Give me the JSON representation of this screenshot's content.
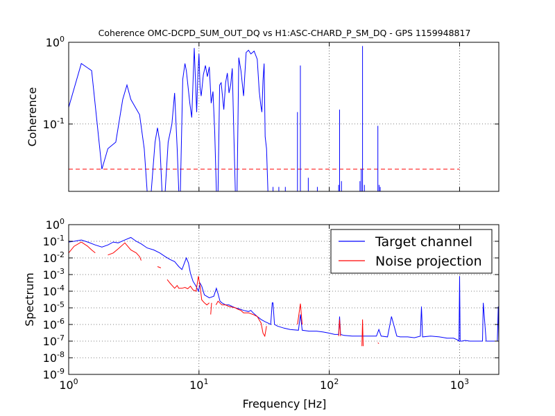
{
  "figure": {
    "background": "#ffffff",
    "target_color": "#0000ff",
    "noise_color": "#ff0000",
    "threshold_color": "#ff0000"
  },
  "chart_data": [
    {
      "type": "line",
      "title": "Coherence OMC-DCPD_SUM_OUT_DQ vs H1:ASC-CHARD_P_SM_DQ - GPS 1159948817",
      "ylabel": "Coherence",
      "xlabel": "",
      "xscale": "log",
      "yscale": "log",
      "xlim": [
        1,
        2000
      ],
      "ylim": [
        0.015,
        1
      ],
      "grid": true,
      "xticks": [
        {
          "v": 1,
          "label": ""
        },
        {
          "v": 10,
          "label": ""
        },
        {
          "v": 100,
          "label": ""
        },
        {
          "v": 1000,
          "label": ""
        }
      ],
      "yticks": [
        {
          "v": 0.1,
          "b": "10",
          "e": "-1"
        },
        {
          "v": 1,
          "b": "10",
          "e": "0"
        }
      ],
      "threshold": {
        "value": 0.028,
        "x_range": [
          1,
          1000
        ],
        "style": "dashed"
      },
      "series": [
        {
          "color": "#0000ff",
          "x": [
            1.0,
            1.25,
            1.5,
            1.8,
            2.0,
            2.3,
            2.6,
            2.8,
            3.0,
            3.5,
            3.8,
            4.0,
            4.3,
            4.6,
            4.8,
            5.0,
            5.2,
            5.5,
            5.8,
            6.2,
            6.5,
            6.8,
            7.0,
            7.2,
            7.5,
            7.8,
            8.0,
            8.5,
            8.8,
            9.2,
            9.6,
            9.8,
            10.0,
            10.2,
            10.4,
            10.8,
            11.2,
            11.6,
            12.0,
            12.4,
            12.8,
            13.2,
            13.6,
            14.0,
            14.4,
            14.8,
            15.5,
            16.0,
            16.5,
            17.0,
            17.5,
            18.0,
            18.5,
            19.0,
            19.6,
            20.2,
            21.0,
            22.0,
            23.0,
            24.0,
            25.0,
            26.5,
            28.0,
            29.0,
            29.8,
            30.4,
            31.0,
            31.6,
            32.2,
            33.0,
            33.8
          ],
          "y": [
            0.16,
            0.55,
            0.45,
            0.028,
            0.05,
            0.06,
            0.2,
            0.3,
            0.2,
            0.13,
            0.05,
            0.015,
            0.015,
            0.06,
            0.09,
            0.06,
            0.015,
            0.015,
            0.06,
            0.1,
            0.24,
            0.05,
            0.015,
            0.015,
            0.35,
            0.55,
            0.45,
            0.18,
            0.12,
            0.85,
            0.14,
            0.4,
            0.72,
            0.28,
            0.22,
            0.4,
            0.52,
            0.38,
            0.5,
            0.18,
            0.25,
            0.08,
            0.015,
            0.015,
            0.3,
            0.32,
            0.15,
            0.32,
            0.42,
            0.24,
            0.3,
            0.48,
            0.08,
            0.015,
            0.015,
            0.65,
            0.45,
            0.22,
            0.75,
            0.8,
            0.72,
            0.78,
            0.62,
            0.25,
            0.17,
            0.14,
            0.34,
            0.55,
            0.07,
            0.05,
            0.015
          ]
        }
      ],
      "spikes": [
        {
          "x": 37,
          "y": 0.017
        },
        {
          "x": 41,
          "y": 0.017
        },
        {
          "x": 46,
          "y": 0.017
        },
        {
          "x": 57,
          "y": 0.14
        },
        {
          "x": 60,
          "y": 0.52
        },
        {
          "x": 69,
          "y": 0.022
        },
        {
          "x": 81,
          "y": 0.017
        },
        {
          "x": 118,
          "y": 0.018
        },
        {
          "x": 120,
          "y": 0.15
        },
        {
          "x": 124,
          "y": 0.02
        },
        {
          "x": 172,
          "y": 0.02
        },
        {
          "x": 176,
          "y": 0.028
        },
        {
          "x": 180,
          "y": 0.9
        },
        {
          "x": 186,
          "y": 0.018
        },
        {
          "x": 236,
          "y": 0.095
        },
        {
          "x": 241,
          "y": 0.018
        },
        {
          "x": 246,
          "y": 0.017
        }
      ]
    },
    {
      "type": "line",
      "title": "",
      "xlabel": "Frequency [Hz]",
      "ylabel": "Spectrum",
      "xscale": "log",
      "yscale": "log",
      "xlim": [
        1,
        2000
      ],
      "ylim": [
        1e-09,
        1
      ],
      "grid": true,
      "legend": "top-right",
      "xticks": [
        {
          "v": 1,
          "b": "10",
          "e": "0"
        },
        {
          "v": 10,
          "b": "10",
          "e": "1"
        },
        {
          "v": 100,
          "b": "10",
          "e": "2"
        },
        {
          "v": 1000,
          "b": "10",
          "e": "3"
        }
      ],
      "yticks": [
        {
          "v": 1e-09,
          "b": "10",
          "e": "-9"
        },
        {
          "v": 1e-08,
          "b": "10",
          "e": "-8"
        },
        {
          "v": 1e-07,
          "b": "10",
          "e": "-7"
        },
        {
          "v": 1e-06,
          "b": "10",
          "e": "-6"
        },
        {
          "v": 1e-05,
          "b": "10",
          "e": "-5"
        },
        {
          "v": 0.0001,
          "b": "10",
          "e": "-4"
        },
        {
          "v": 0.001,
          "b": "10",
          "e": "-3"
        },
        {
          "v": 0.01,
          "b": "10",
          "e": "-2"
        },
        {
          "v": 0.1,
          "b": "10",
          "e": "-1"
        },
        {
          "v": 1,
          "b": "10",
          "e": "0"
        }
      ],
      "series": [
        {
          "name": "Target channel",
          "color": "#0000ff",
          "x": [
            1.0,
            1.1,
            1.25,
            1.4,
            1.6,
            1.8,
            2.0,
            2.2,
            2.4,
            2.7,
            3.0,
            3.3,
            3.6,
            4.0,
            4.5,
            5.0,
            5.5,
            6.0,
            6.5,
            7.0,
            7.4,
            7.8,
            8.0,
            8.3,
            8.6,
            9.0,
            9.5,
            9.9,
            10.2,
            10.5,
            11.0,
            12.0,
            13.0,
            13.6,
            14.0,
            14.5,
            15.0,
            16.0,
            17.0,
            18.0,
            19.0,
            20.0,
            21.0,
            22.0,
            24.0,
            25.0,
            26.0,
            28.0,
            30.0,
            32.0,
            34.0,
            35.5,
            36.5,
            37.0,
            38.0,
            40.0,
            45.0,
            50.0,
            58.0,
            60.0,
            62.0,
            70.0,
            80.0,
            90.0,
            100.0,
            110.0,
            118.0,
            120.0,
            122.0,
            130.0,
            150.0,
            170.0,
            180.0,
            190.0,
            200.0,
            230.0,
            240.0,
            250.0,
            280.0,
            300.0,
            330.0,
            350.0,
            400.0,
            450.0,
            500.0,
            510.0,
            520.0,
            600.0,
            700.0,
            800.0,
            900.0,
            960.0,
            990.0,
            1000.0,
            1010.0,
            1040.0,
            1100.0,
            1200.0,
            1300.0,
            1400.0,
            1500.0,
            1520.0,
            1600.0,
            1800.0,
            1950.0,
            1980.0,
            2000.0
          ],
          "y": [
            0.09,
            0.1,
            0.12,
            0.09,
            0.06,
            0.045,
            0.06,
            0.09,
            0.08,
            0.12,
            0.17,
            0.1,
            0.07,
            0.04,
            0.03,
            0.02,
            0.012,
            0.008,
            0.006,
            0.003,
            0.002,
            0.006,
            0.01,
            0.005,
            0.0012,
            0.0004,
            0.0002,
            0.0001,
            0.0003,
            0.0002,
            6e-05,
            4e-05,
            5e-05,
            0.00015,
            7e-05,
            2.5e-05,
            2e-05,
            1.5e-05,
            1.5e-05,
            1.2e-05,
            1e-05,
            9e-06,
            8e-06,
            7e-06,
            6e-06,
            7e-06,
            5e-06,
            3e-06,
            2e-06,
            1.5e-06,
            1.2e-06,
            1e-06,
            2e-05,
            2e-05,
            1e-06,
            8e-07,
            6e-07,
            5e-07,
            4.5e-07,
            4e-06,
            4.5e-07,
            4e-07,
            4e-07,
            3.5e-07,
            3e-07,
            2.5e-07,
            2.5e-07,
            3e-06,
            2.5e-07,
            2.2e-07,
            2e-07,
            2e-07,
            2e-07,
            2e-07,
            2e-07,
            2e-07,
            5e-07,
            2e-07,
            1.8e-07,
            3e-06,
            2e-07,
            1.8e-07,
            1.8e-07,
            1.6e-07,
            2e-07,
            1.2e-05,
            1.8e-07,
            2e-07,
            1.8e-07,
            1.5e-07,
            1.5e-07,
            1.2e-07,
            1e-07,
            0.0008,
            1e-07,
            1e-07,
            1.1e-07,
            1e-07,
            1e-07,
            1e-07,
            1e-07,
            2e-05,
            1e-07,
            1e-07,
            1e-07,
            1.2e-05,
            1e-07
          ]
        },
        {
          "name": "Noise projection",
          "color": "#ff0000",
          "segments": [
            {
              "x": [
                1.0,
                1.1,
                1.25,
                1.4,
                1.5,
                1.6
              ],
              "y": [
                0.02,
                0.05,
                0.09,
                0.05,
                0.03,
                0.02
              ]
            },
            {
              "x": [
                2.0,
                2.2,
                2.4,
                2.7,
                3.0,
                3.3,
                3.5,
                3.6
              ],
              "y": [
                0.015,
                0.02,
                0.035,
                0.08,
                0.03,
                0.02,
                0.012,
                0.007
              ]
            },
            {
              "x": [
                4.8,
                5.1
              ],
              "y": [
                0.003,
                0.0025
              ]
            },
            {
              "x": [
                5.7,
                6.0,
                6.5,
                6.8,
                7.0,
                7.4,
                7.8,
                8.2,
                8.6,
                9.0,
                9.5,
                9.9,
                10.2,
                10.5,
                11.0,
                11.5,
                12.0
              ],
              "y": [
                0.0005,
                0.0003,
                0.00015,
                0.00022,
                0.00015,
                0.00015,
                0.00017,
                0.00014,
                0.0002,
                0.00012,
                0.0001,
                0.0008,
                0.0002,
                3e-05,
                2e-05,
                1.5e-05,
                2e-05
              ]
            },
            {
              "x": [
                12.3,
                12.5
              ],
              "y": [
                4e-06,
                2e-05
              ]
            },
            {
              "x": [
                13.5,
                14.0,
                15.0,
                16.0,
                17.0,
                18.0,
                19.0,
                20.0,
                21.0,
                22.0,
                24.0,
                26.0,
                28.0,
                30.0,
                31.0,
                32.0,
                33.0
              ],
              "y": [
                1.5e-05,
                2.5e-05,
                1.5e-05,
                1.5e-05,
                1.2e-05,
                1.1e-05,
                1e-05,
                8e-06,
                7e-06,
                5e-06,
                5e-06,
                4e-06,
                3e-06,
                1.2e-06,
                3e-07,
                2e-07,
                8e-07
              ]
            },
            {
              "x": [
                57,
                60,
                62
              ],
              "y": [
                1e-06,
                1.8e-05,
                1e-06
              ]
            },
            {
              "x": [
                118,
                120,
                122
              ],
              "y": [
                2e-07,
                2e-06,
                2e-07
              ]
            },
            {
              "x": [
                178,
                180,
                182
              ],
              "y": [
                5e-08,
                2e-06,
                5e-08
              ]
            },
            {
              "x": [
                236,
                240
              ],
              "y": [
                8e-08,
                7e-08
              ]
            }
          ]
        }
      ]
    }
  ]
}
